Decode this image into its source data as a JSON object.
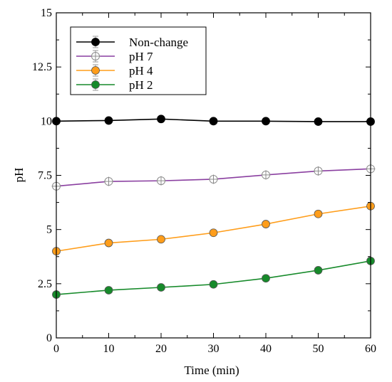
{
  "chart_data": {
    "type": "line",
    "xlabel": "Time (min)",
    "ylabel": "pH",
    "xlim": [
      0,
      60
    ],
    "ylim": [
      0,
      15
    ],
    "xticks": [
      0,
      10,
      20,
      30,
      40,
      50,
      60
    ],
    "yticks": [
      0,
      2.5,
      5,
      7.5,
      10,
      12.5,
      15
    ],
    "ytick_labels": [
      "0",
      "2.5",
      "5",
      "7.5",
      "10",
      "12.5",
      "15"
    ],
    "grid": false,
    "legend_position": "top-left",
    "x": [
      0,
      10,
      20,
      30,
      40,
      50,
      60
    ],
    "series": [
      {
        "name": "Non-change",
        "color": "#000000",
        "marker": "filled-circle",
        "values": [
          10.0,
          10.03,
          10.1,
          10.0,
          10.0,
          9.98,
          9.98
        ]
      },
      {
        "name": "pH 7",
        "color": "#8a3fa0",
        "marker": "open-circle-cross",
        "values": [
          7.0,
          7.22,
          7.25,
          7.32,
          7.52,
          7.7,
          7.8
        ]
      },
      {
        "name": "pH 4",
        "color": "#ff9d1a",
        "marker": "filled-circle",
        "values": [
          4.0,
          4.38,
          4.55,
          4.85,
          5.25,
          5.72,
          6.08
        ]
      },
      {
        "name": "pH 2",
        "color": "#168a2a",
        "marker": "filled-circle",
        "values": [
          2.0,
          2.2,
          2.33,
          2.47,
          2.75,
          3.12,
          3.55
        ]
      }
    ]
  }
}
